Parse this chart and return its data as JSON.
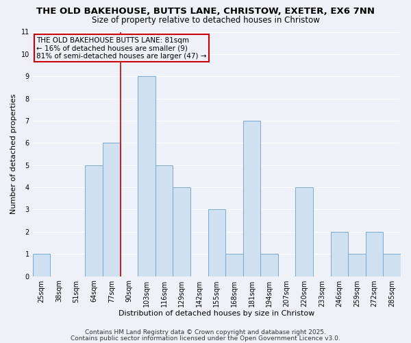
{
  "title": "THE OLD BAKEHOUSE, BUTTS LANE, CHRISTOW, EXETER, EX6 7NN",
  "subtitle": "Size of property relative to detached houses in Christow",
  "xlabel": "Distribution of detached houses by size in Christow",
  "ylabel": "Number of detached properties",
  "bar_color": "#cfe0f0",
  "bar_edge_color": "#7aaad0",
  "background_color": "#eef2f8",
  "grid_color": "#ffffff",
  "bins": [
    "25sqm",
    "38sqm",
    "51sqm",
    "64sqm",
    "77sqm",
    "90sqm",
    "103sqm",
    "116sqm",
    "129sqm",
    "142sqm",
    "155sqm",
    "168sqm",
    "181sqm",
    "194sqm",
    "207sqm",
    "220sqm",
    "233sqm",
    "246sqm",
    "259sqm",
    "272sqm",
    "285sqm"
  ],
  "values": [
    1,
    0,
    0,
    5,
    6,
    0,
    9,
    5,
    4,
    0,
    3,
    1,
    7,
    1,
    0,
    4,
    0,
    2,
    1,
    2,
    1
  ],
  "ylim": [
    0,
    11
  ],
  "yticks": [
    0,
    1,
    2,
    3,
    4,
    5,
    6,
    7,
    8,
    9,
    10,
    11
  ],
  "property_line_color": "#cc0000",
  "property_line_bin_index": 4,
  "annotation_text_line1": "THE OLD BAKEHOUSE BUTTS LANE: 81sqm",
  "annotation_text_line2": "← 16% of detached houses are smaller (9)",
  "annotation_text_line3": "81% of semi-detached houses are larger (47) →",
  "footer_line1": "Contains HM Land Registry data © Crown copyright and database right 2025.",
  "footer_line2": "Contains public sector information licensed under the Open Government Licence v3.0.",
  "title_fontsize": 9.5,
  "subtitle_fontsize": 8.5,
  "axis_label_fontsize": 8,
  "tick_fontsize": 7,
  "annotation_fontsize": 7.5,
  "footer_fontsize": 6.5
}
